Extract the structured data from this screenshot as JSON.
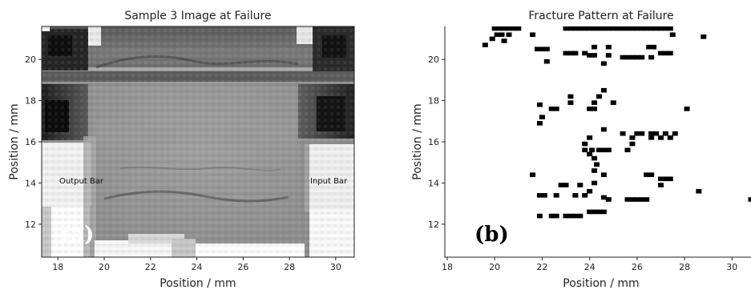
{
  "chart_data": [
    {
      "type": "heatmap",
      "title": "Sample 3 Image at Failure",
      "xlabel": "Position / mm",
      "ylabel": "Position / mm",
      "xlim": [
        17.3,
        30.8
      ],
      "ylim": [
        10.4,
        21.6
      ],
      "xticks": [
        18,
        20,
        22,
        24,
        26,
        28,
        30
      ],
      "yticks": [
        12,
        14,
        16,
        18,
        20
      ],
      "annotations": [
        "Output Bar",
        "Input Bar"
      ],
      "panel_label": "(a)",
      "colormap": "grayscale"
    },
    {
      "type": "scatter",
      "title": "Fracture Pattern at Failure",
      "xlabel": "Position / mm",
      "ylabel": "Position / mm",
      "xlim": [
        17.9,
        30.8
      ],
      "ylim": [
        10.4,
        21.6
      ],
      "xticks": [
        18,
        20,
        22,
        24,
        26,
        28,
        30
      ],
      "yticks": [
        12,
        14,
        16,
        18,
        20
      ],
      "panel_label": "(b)",
      "marker_color": "#000000",
      "points": [
        [
          20.0,
          21.5
        ],
        [
          20.2,
          21.5
        ],
        [
          20.4,
          21.5
        ],
        [
          20.6,
          21.5
        ],
        [
          20.8,
          21.5
        ],
        [
          21.0,
          21.5
        ],
        [
          23.0,
          21.5
        ],
        [
          23.2,
          21.5
        ],
        [
          23.4,
          21.5
        ],
        [
          23.6,
          21.5
        ],
        [
          23.8,
          21.5
        ],
        [
          24.0,
          21.5
        ],
        [
          24.2,
          21.5
        ],
        [
          24.4,
          21.5
        ],
        [
          24.6,
          21.5
        ],
        [
          24.8,
          21.5
        ],
        [
          25.0,
          21.5
        ],
        [
          25.2,
          21.5
        ],
        [
          25.4,
          21.5
        ],
        [
          25.6,
          21.5
        ],
        [
          25.8,
          21.5
        ],
        [
          26.0,
          21.5
        ],
        [
          26.2,
          21.5
        ],
        [
          26.4,
          21.5
        ],
        [
          26.6,
          21.5
        ],
        [
          26.8,
          21.5
        ],
        [
          27.0,
          21.5
        ],
        [
          27.2,
          21.5
        ],
        [
          27.4,
          21.5
        ],
        [
          20.1,
          21.2
        ],
        [
          20.3,
          21.2
        ],
        [
          20.6,
          21.2
        ],
        [
          21.6,
          21.2
        ],
        [
          27.5,
          21.2
        ],
        [
          28.8,
          21.1
        ],
        [
          19.9,
          21.0
        ],
        [
          19.6,
          20.7
        ],
        [
          20.4,
          20.9
        ],
        [
          21.8,
          20.5
        ],
        [
          22.0,
          20.5
        ],
        [
          22.2,
          20.5
        ],
        [
          24.2,
          20.6
        ],
        [
          24.8,
          20.6
        ],
        [
          26.5,
          20.6
        ],
        [
          26.7,
          20.6
        ],
        [
          23.0,
          20.3
        ],
        [
          23.2,
          20.3
        ],
        [
          23.4,
          20.3
        ],
        [
          23.8,
          20.3
        ],
        [
          24.0,
          20.2
        ],
        [
          24.2,
          20.2
        ],
        [
          24.8,
          20.2
        ],
        [
          25.4,
          20.1
        ],
        [
          25.6,
          20.1
        ],
        [
          25.8,
          20.1
        ],
        [
          26.0,
          20.1
        ],
        [
          26.2,
          20.1
        ],
        [
          26.6,
          20.1
        ],
        [
          27.0,
          20.3
        ],
        [
          27.2,
          20.3
        ],
        [
          27.4,
          20.3
        ],
        [
          22.2,
          19.9
        ],
        [
          24.6,
          19.8
        ],
        [
          24.6,
          18.5
        ],
        [
          23.2,
          18.2
        ],
        [
          23.2,
          17.9
        ],
        [
          24.4,
          18.2
        ],
        [
          24.2,
          17.9
        ],
        [
          25.0,
          17.9
        ],
        [
          24.2,
          17.6
        ],
        [
          24.0,
          17.6
        ],
        [
          21.9,
          17.8
        ],
        [
          22.4,
          17.6
        ],
        [
          22.6,
          17.6
        ],
        [
          28.1,
          17.6
        ],
        [
          22.0,
          17.2
        ],
        [
          21.9,
          16.9
        ],
        [
          24.6,
          16.6
        ],
        [
          24.0,
          16.2
        ],
        [
          26.0,
          16.4
        ],
        [
          26.2,
          16.4
        ],
        [
          25.4,
          16.4
        ],
        [
          26.6,
          16.4
        ],
        [
          26.8,
          16.4
        ],
        [
          27.0,
          16.2
        ],
        [
          27.2,
          16.4
        ],
        [
          27.6,
          16.4
        ],
        [
          25.8,
          16.2
        ],
        [
          26.6,
          16.2
        ],
        [
          27.4,
          16.2
        ],
        [
          25.8,
          15.9
        ],
        [
          25.6,
          15.6
        ],
        [
          23.8,
          15.9
        ],
        [
          24.1,
          15.6
        ],
        [
          24.4,
          15.6
        ],
        [
          24.6,
          15.6
        ],
        [
          24.8,
          15.6
        ],
        [
          23.8,
          15.6
        ],
        [
          24.0,
          15.4
        ],
        [
          24.3,
          14.9
        ],
        [
          24.2,
          15.2
        ],
        [
          24.2,
          14.6
        ],
        [
          21.6,
          14.4
        ],
        [
          24.6,
          14.4
        ],
        [
          26.4,
          14.4
        ],
        [
          26.6,
          14.4
        ],
        [
          27.0,
          14.2
        ],
        [
          27.2,
          14.2
        ],
        [
          27.4,
          14.2
        ],
        [
          27.0,
          13.9
        ],
        [
          22.8,
          13.9
        ],
        [
          23.0,
          13.9
        ],
        [
          23.6,
          13.9
        ],
        [
          24.2,
          14.0
        ],
        [
          24.0,
          13.6
        ],
        [
          28.6,
          13.6
        ],
        [
          21.9,
          13.4
        ],
        [
          22.1,
          13.4
        ],
        [
          22.6,
          13.4
        ],
        [
          23.4,
          13.4
        ],
        [
          23.8,
          13.4
        ],
        [
          24.6,
          13.3
        ],
        [
          24.8,
          13.2
        ],
        [
          25.6,
          13.2
        ],
        [
          25.8,
          13.2
        ],
        [
          26.0,
          13.2
        ],
        [
          26.2,
          13.2
        ],
        [
          26.4,
          13.2
        ],
        [
          30.8,
          13.2
        ],
        [
          21.9,
          12.4
        ],
        [
          22.4,
          12.4
        ],
        [
          22.6,
          12.4
        ],
        [
          23.0,
          12.4
        ],
        [
          23.2,
          12.4
        ],
        [
          23.4,
          12.4
        ],
        [
          23.6,
          12.4
        ],
        [
          24.0,
          12.6
        ],
        [
          24.2,
          12.6
        ],
        [
          24.4,
          12.6
        ],
        [
          24.6,
          12.6
        ]
      ]
    }
  ]
}
